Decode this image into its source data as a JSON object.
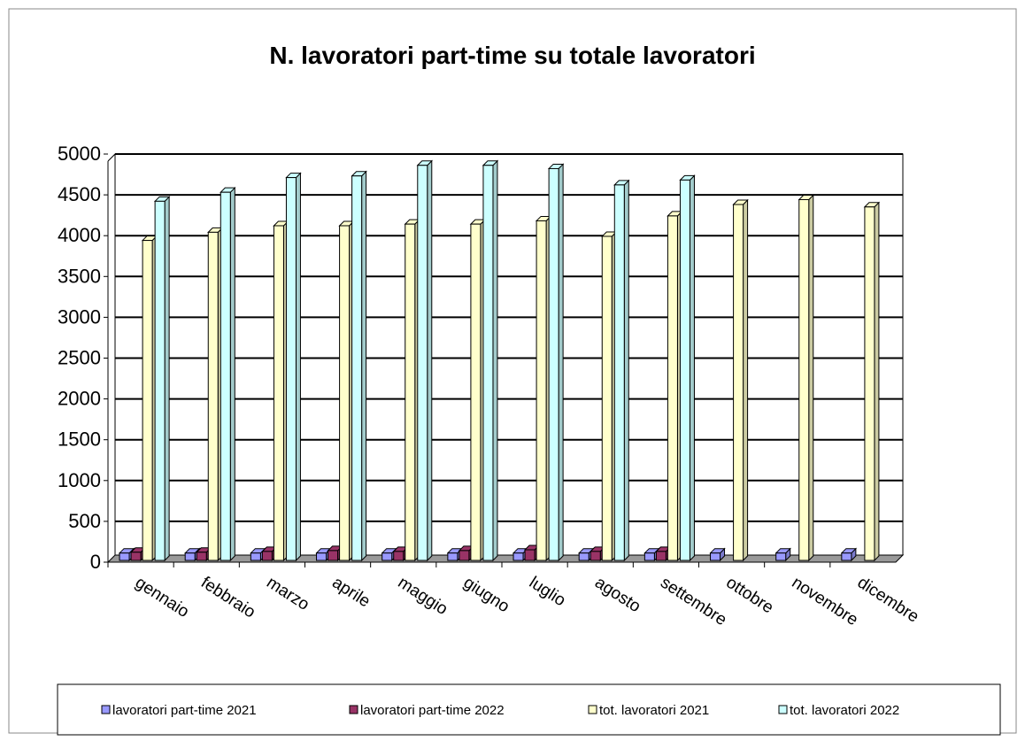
{
  "chart_data": {
    "type": "bar3d",
    "title": "N. lavoratori part-time su totale lavoratori",
    "categories": [
      "gennaio",
      "febbraio",
      "marzo",
      "aprile",
      "maggio",
      "giugno",
      "luglio",
      "agosto",
      "settembre",
      "ottobre",
      "novembre",
      "dicembre"
    ],
    "series": [
      {
        "name": "lavoratori part-time 2021",
        "color": "#9999ff",
        "values": [
          90,
          90,
          90,
          90,
          90,
          90,
          90,
          90,
          90,
          90,
          90,
          90
        ]
      },
      {
        "name": "lavoratori part-time 2022",
        "color": "#993366",
        "values": [
          100,
          100,
          110,
          120,
          110,
          120,
          130,
          110,
          110,
          null,
          null,
          null
        ]
      },
      {
        "name": "tot. lavoratori 2021",
        "color": "#ffffcc",
        "values": [
          3920,
          4020,
          4100,
          4100,
          4120,
          4120,
          4160,
          3970,
          4220,
          4360,
          4420,
          4330
        ]
      },
      {
        "name": "tot. lavoratori 2022",
        "color": "#ccffff",
        "values": [
          4400,
          4510,
          4690,
          4710,
          4840,
          4840,
          4800,
          4600,
          4660,
          null,
          null,
          null
        ]
      }
    ],
    "ylim": [
      0,
      5000
    ],
    "yticks": [
      0,
      500,
      1000,
      1500,
      2000,
      2500,
      3000,
      3500,
      4000,
      4500,
      5000
    ],
    "grid": true
  }
}
